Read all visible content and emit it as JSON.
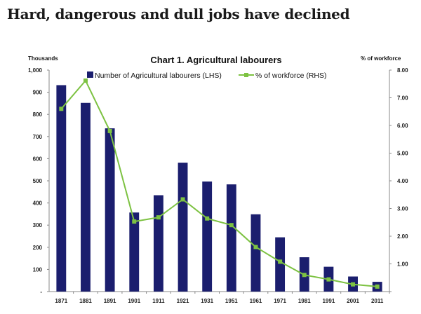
{
  "headline": "Hard, dangerous and dull jobs have declined",
  "chart_data": {
    "type": "bar",
    "title": "Chart 1. Agricultural labourers",
    "ylabel_left": "Thousands",
    "ylabel_right": "% of workforce",
    "categories": [
      "1871",
      "1881",
      "1891",
      "1901",
      "1911",
      "1921",
      "1931",
      "1951",
      "1961",
      "1971",
      "1981",
      "1991",
      "2001",
      "2011"
    ],
    "series": [
      {
        "name": "Number of Agricultural labourers (LHS)",
        "type": "bar",
        "axis": "left",
        "color": "#1b1e6e",
        "values": [
          932,
          852,
          737,
          357,
          435,
          582,
          497,
          484,
          349,
          245,
          155,
          112,
          68,
          44
        ]
      },
      {
        "name": "% of workforce (RHS)",
        "type": "line",
        "axis": "right",
        "color": "#7dc242",
        "values": [
          6.6,
          7.62,
          5.8,
          2.53,
          2.68,
          3.33,
          2.64,
          2.4,
          1.61,
          1.08,
          0.6,
          0.44,
          0.26,
          0.18
        ]
      }
    ],
    "ylim_left": [
      0,
      1000
    ],
    "ylim_right": [
      0,
      8
    ],
    "left_ticks": [
      "-",
      "100",
      "200",
      "300",
      "400",
      "500",
      "600",
      "700",
      "800",
      "900",
      "1,000"
    ],
    "right_ticks": [
      "",
      "1.00",
      "2.00",
      "3.00",
      "4.00",
      "5.00",
      "6.00",
      "7.00",
      "8.00"
    ],
    "grid": false,
    "legend_position": "top"
  }
}
